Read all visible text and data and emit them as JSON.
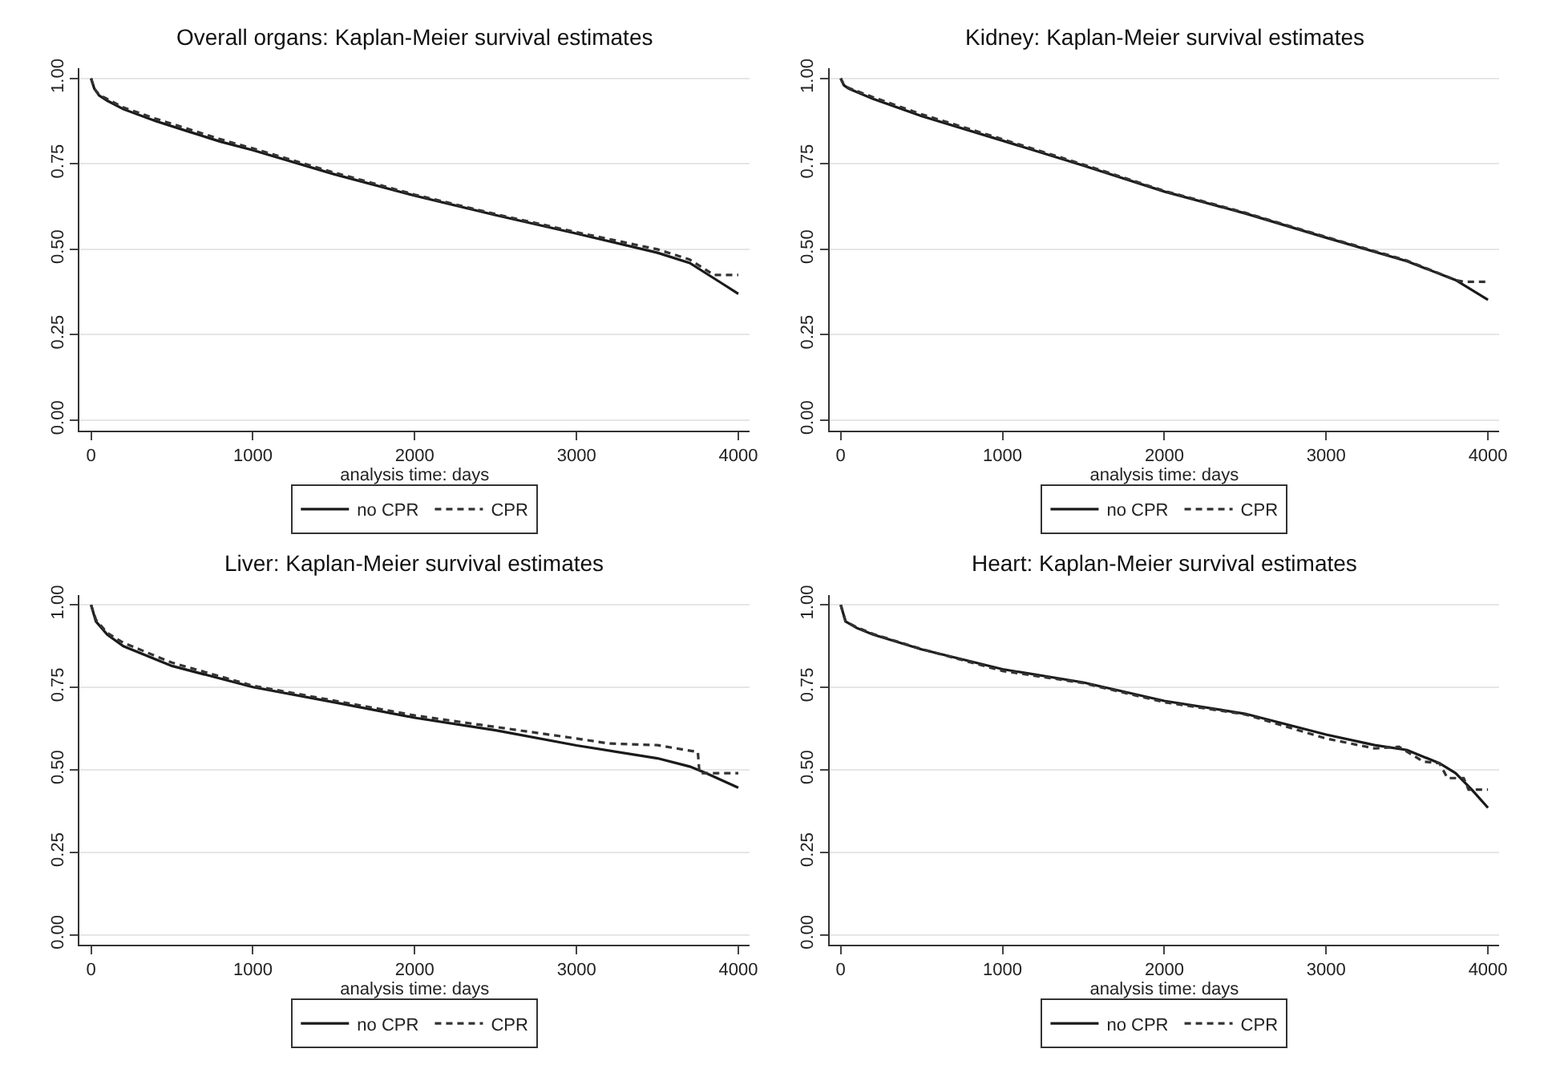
{
  "chart_data": [
    {
      "type": "line",
      "title": "Overall organs: Kaplan-Meier survival estimates",
      "xlabel": "analysis time: days",
      "xlim": [
        -70,
        4070
      ],
      "xticks": [
        0,
        1000,
        2000,
        3000,
        4000
      ],
      "ylim": [
        -0.03,
        1.03
      ],
      "yticks": [
        {
          "value": 0,
          "label": "0.00"
        },
        {
          "value": 0.25,
          "label": "0.25"
        },
        {
          "value": 0.5,
          "label": "0.50"
        },
        {
          "value": 0.75,
          "label": "0.75"
        },
        {
          "value": 1,
          "label": "1.00"
        }
      ],
      "grid": "y",
      "legend": "bottom",
      "series": [
        {
          "name": "no CPR",
          "color": "#1a1a1a",
          "line_style": "solid",
          "x": [
            0,
            20,
            50,
            100,
            200,
            400,
            600,
            800,
            1000,
            1500,
            2000,
            2500,
            3000,
            3500,
            3700,
            3800,
            3900,
            4000
          ],
          "values": [
            1.0,
            0.97,
            0.95,
            0.935,
            0.91,
            0.875,
            0.845,
            0.815,
            0.79,
            0.72,
            0.657,
            0.6,
            0.546,
            0.49,
            0.46,
            0.43,
            0.4,
            0.37
          ]
        },
        {
          "name": "CPR",
          "color": "#333333",
          "line_style": "dashed",
          "x": [
            0,
            20,
            50,
            100,
            200,
            400,
            600,
            800,
            1000,
            1500,
            2000,
            2500,
            3000,
            3500,
            3700,
            3850,
            4000
          ],
          "values": [
            1.0,
            0.97,
            0.952,
            0.94,
            0.915,
            0.882,
            0.852,
            0.822,
            0.795,
            0.725,
            0.66,
            0.603,
            0.55,
            0.5,
            0.47,
            0.425,
            0.425
          ]
        }
      ]
    },
    {
      "type": "line",
      "title": "Kidney: Kaplan-Meier survival estimates",
      "xlabel": "analysis time: days",
      "xlim": [
        -70,
        4070
      ],
      "xticks": [
        0,
        1000,
        2000,
        3000,
        4000
      ],
      "ylim": [
        -0.03,
        1.03
      ],
      "yticks": [
        {
          "value": 0,
          "label": "0.00"
        },
        {
          "value": 0.25,
          "label": "0.25"
        },
        {
          "value": 0.5,
          "label": "0.50"
        },
        {
          "value": 0.75,
          "label": "0.75"
        },
        {
          "value": 1,
          "label": "1.00"
        }
      ],
      "grid": "y",
      "legend": "bottom",
      "series": [
        {
          "name": "no CPR",
          "color": "#1a1a1a",
          "line_style": "solid",
          "x": [
            0,
            20,
            50,
            200,
            500,
            1000,
            1500,
            2000,
            2500,
            3000,
            3500,
            3800,
            4000
          ],
          "values": [
            1.0,
            0.98,
            0.97,
            0.94,
            0.89,
            0.818,
            0.745,
            0.669,
            0.605,
            0.534,
            0.465,
            0.41,
            0.352
          ]
        },
        {
          "name": "CPR",
          "color": "#333333",
          "line_style": "dashed",
          "x": [
            0,
            20,
            50,
            200,
            500,
            1000,
            1500,
            2000,
            2500,
            3000,
            3500,
            3800,
            3850,
            4000
          ],
          "values": [
            1.0,
            0.98,
            0.972,
            0.945,
            0.895,
            0.822,
            0.748,
            0.671,
            0.607,
            0.536,
            0.467,
            0.41,
            0.405,
            0.405
          ]
        }
      ]
    },
    {
      "type": "line",
      "title": "Liver: Kaplan-Meier survival estimates",
      "xlabel": "analysis time: days",
      "xlim": [
        -70,
        4070
      ],
      "xticks": [
        0,
        1000,
        2000,
        3000,
        4000
      ],
      "ylim": [
        -0.03,
        1.03
      ],
      "yticks": [
        {
          "value": 0,
          "label": "0.00"
        },
        {
          "value": 0.25,
          "label": "0.25"
        },
        {
          "value": 0.5,
          "label": "0.50"
        },
        {
          "value": 0.75,
          "label": "0.75"
        },
        {
          "value": 1,
          "label": "1.00"
        }
      ],
      "grid": "y",
      "legend": "bottom",
      "series": [
        {
          "name": "no CPR",
          "color": "#1a1a1a",
          "line_style": "solid",
          "x": [
            0,
            30,
            100,
            200,
            500,
            1000,
            1500,
            2000,
            2500,
            3000,
            3500,
            3700,
            3800,
            4000
          ],
          "values": [
            1.0,
            0.95,
            0.91,
            0.875,
            0.815,
            0.751,
            0.705,
            0.658,
            0.62,
            0.574,
            0.535,
            0.51,
            0.49,
            0.446
          ]
        },
        {
          "name": "CPR",
          "color": "#333333",
          "line_style": "dashed",
          "x": [
            0,
            30,
            100,
            200,
            500,
            1000,
            1500,
            2000,
            2500,
            3000,
            3200,
            3500,
            3750,
            3760,
            4000
          ],
          "values": [
            1.0,
            0.955,
            0.915,
            0.885,
            0.825,
            0.755,
            0.71,
            0.665,
            0.63,
            0.595,
            0.58,
            0.575,
            0.554,
            0.49,
            0.49
          ]
        }
      ]
    },
    {
      "type": "line",
      "title": "Heart: Kaplan-Meier survival estimates",
      "xlabel": "analysis time: days",
      "xlim": [
        -70,
        4070
      ],
      "xticks": [
        0,
        1000,
        2000,
        3000,
        4000
      ],
      "ylim": [
        -0.03,
        1.03
      ],
      "yticks": [
        {
          "value": 0,
          "label": "0.00"
        },
        {
          "value": 0.25,
          "label": "0.25"
        },
        {
          "value": 0.5,
          "label": "0.50"
        },
        {
          "value": 0.75,
          "label": "0.75"
        },
        {
          "value": 1,
          "label": "1.00"
        }
      ],
      "grid": "y",
      "legend": "bottom",
      "series": [
        {
          "name": "no CPR",
          "color": "#1a1a1a",
          "line_style": "solid",
          "x": [
            0,
            30,
            100,
            200,
            500,
            1000,
            1500,
            2000,
            2500,
            3000,
            3300,
            3500,
            3700,
            3800,
            3900,
            4000
          ],
          "values": [
            1.0,
            0.95,
            0.93,
            0.91,
            0.865,
            0.805,
            0.765,
            0.709,
            0.67,
            0.607,
            0.575,
            0.56,
            0.52,
            0.49,
            0.44,
            0.385
          ]
        },
        {
          "name": "CPR",
          "color": "#333333",
          "line_style": "dashed",
          "x": [
            0,
            30,
            100,
            200,
            500,
            1000,
            1500,
            2000,
            2500,
            3000,
            3300,
            3450,
            3600,
            3700,
            3750,
            3850,
            3880,
            4000
          ],
          "values": [
            1.0,
            0.95,
            0.932,
            0.912,
            0.866,
            0.8,
            0.763,
            0.705,
            0.668,
            0.595,
            0.565,
            0.57,
            0.525,
            0.52,
            0.475,
            0.475,
            0.44,
            0.44
          ]
        }
      ]
    }
  ]
}
